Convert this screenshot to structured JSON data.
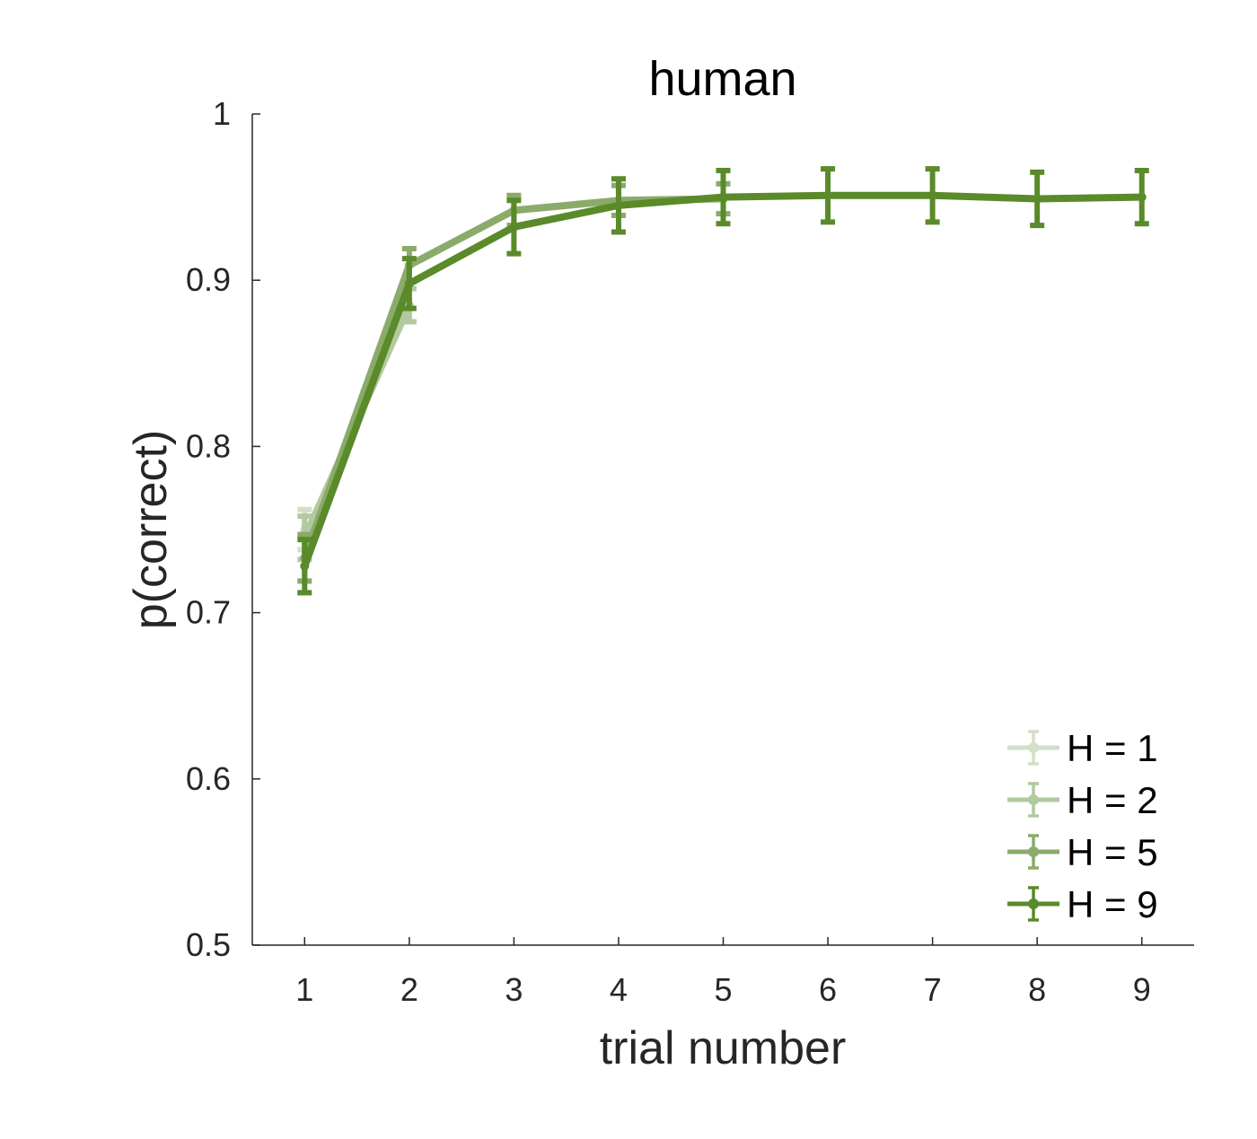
{
  "chart_data": {
    "type": "line",
    "title": "human",
    "xlabel": "trial number",
    "ylabel": "p(correct)",
    "x": [
      1,
      2,
      3,
      4,
      5,
      6,
      7,
      8,
      9
    ],
    "xticks": [
      "1",
      "2",
      "3",
      "4",
      "5",
      "6",
      "7",
      "8",
      "9"
    ],
    "xlim": [
      0.5,
      9.5
    ],
    "ylim": [
      0.5,
      1.0
    ],
    "yticks": [
      "0.5",
      "0.6",
      "0.7",
      "0.8",
      "0.9",
      "1"
    ],
    "ytick_values": [
      0.5,
      0.6,
      0.7,
      0.8,
      0.9,
      1.0
    ],
    "grid": false,
    "legend_position": "bottom-right",
    "series": [
      {
        "name": "H = 1",
        "color": "#d3dfc8",
        "x": [
          1
        ],
        "values": [
          0.75
        ],
        "errors": [
          0.012
        ]
      },
      {
        "name": "H = 2",
        "color": "#b3c99e",
        "x": [
          1,
          2
        ],
        "values": [
          0.745,
          0.885
        ],
        "errors": [
          0.013,
          0.01
        ]
      },
      {
        "name": "H = 5",
        "color": "#8aab6a",
        "x": [
          1,
          2,
          3,
          4,
          5
        ],
        "values": [
          0.733,
          0.909,
          0.942,
          0.948,
          0.949
        ],
        "errors": [
          0.014,
          0.01,
          0.009,
          0.009,
          0.009
        ]
      },
      {
        "name": "H = 9",
        "color": "#5a8a2a",
        "x": [
          1,
          2,
          3,
          4,
          5,
          6,
          7,
          8,
          9
        ],
        "values": [
          0.728,
          0.898,
          0.932,
          0.945,
          0.95,
          0.951,
          0.951,
          0.949,
          0.95
        ],
        "errors": [
          0.016,
          0.015,
          0.016,
          0.016,
          0.016,
          0.016,
          0.016,
          0.016,
          0.016
        ]
      }
    ]
  }
}
